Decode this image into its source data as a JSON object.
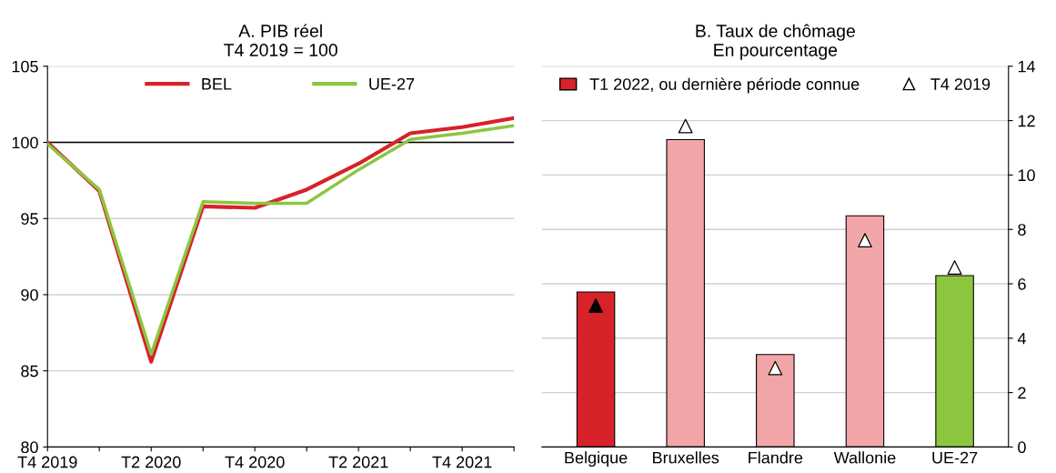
{
  "chart_data": [
    {
      "type": "line",
      "title": "A. PIB réel",
      "subtitle": "T4 2019 = 100",
      "categories": [
        "T4 2019",
        null,
        "T2 2020",
        null,
        "T4 2020",
        null,
        "T2 2021",
        null,
        "T4 2021",
        null
      ],
      "series": [
        {
          "name": "BEL",
          "color": "#d7222a",
          "values": [
            100.0,
            96.8,
            85.6,
            95.8,
            95.7,
            96.9,
            98.6,
            100.6,
            101.0,
            101.6
          ]
        },
        {
          "name": "UE-27",
          "color": "#8cc63f",
          "values": [
            99.9,
            96.9,
            86.1,
            96.1,
            96.0,
            96.0,
            98.2,
            100.2,
            100.6,
            101.1
          ]
        }
      ],
      "ylim": [
        80,
        105
      ],
      "yticks": [
        80,
        85,
        90,
        95,
        100,
        105
      ],
      "grid": "y",
      "legend": "top",
      "marker": "none",
      "line_style": "solid",
      "ref_lines": [
        {
          "axis": "y",
          "value": 100,
          "color": "#000000"
        }
      ]
    },
    {
      "type": "bar",
      "title": "B. Taux de chômage",
      "subtitle": "En pourcentage",
      "categories": [
        "Belgique",
        "Bruxelles",
        "Flandre",
        "Wallonie",
        "UE-27"
      ],
      "series": [
        {
          "name": "T1 2022, ou dernière période connue",
          "type": "bar",
          "color": "#d7222a",
          "colors": [
            "#d7222a",
            "#f2a5a8",
            "#f2a5a8",
            "#f2a5a8",
            "#8cc63f"
          ],
          "values": [
            5.7,
            11.3,
            3.4,
            8.5,
            6.3
          ]
        },
        {
          "name": "T4 2019",
          "type": "scatter",
          "color": "#000000",
          "colors": [
            "#000000",
            "#ffffff",
            "#ffffff",
            "#ffffff",
            "#ffffff"
          ],
          "marker": "triangle",
          "values": [
            5.2,
            11.8,
            2.9,
            7.6,
            6.6
          ]
        }
      ],
      "ylim": [
        0,
        14
      ],
      "yticks": [
        0,
        2,
        4,
        6,
        8,
        10,
        12,
        14
      ],
      "grid": "y",
      "legend": "top"
    }
  ]
}
